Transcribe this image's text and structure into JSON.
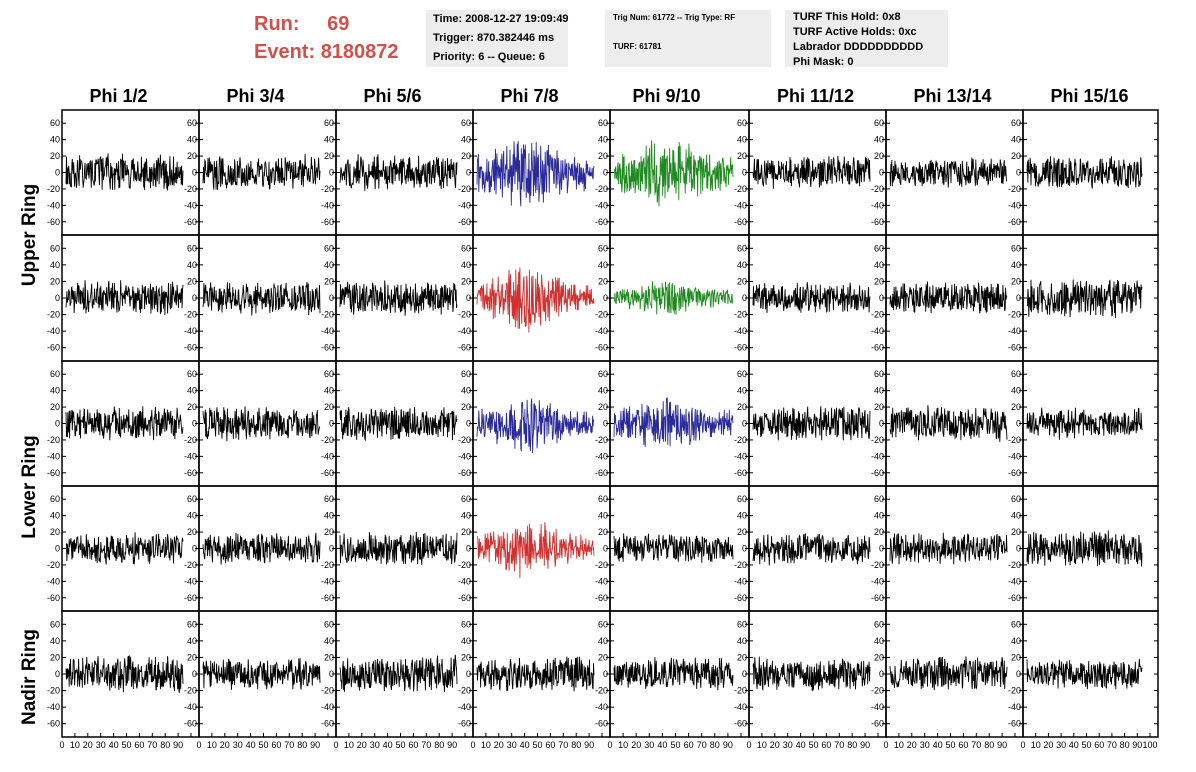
{
  "header": {
    "run_label": "Run:",
    "run_value": "69",
    "event_label": "Event:",
    "event_value": "8180872",
    "time": "Time: 2008-12-27 19:09:49",
    "trigger": "Trigger: 870.382446 ms",
    "priority": "Priority: 6 -- Queue: 6",
    "trig_num": "Trig Num: 61772 -- Trig Type: RF",
    "turf": "TURF: 61781",
    "turf_this_hold": "TURF This Hold: 0x8",
    "turf_active_holds": "TURF Active Holds: 0xc",
    "labrador": "Labrador DDDDDDDDDD",
    "phi_mask": "Phi Mask: 0"
  },
  "columns": [
    "Phi 1/2",
    "Phi 3/4",
    "Phi 5/6",
    "Phi 7/8",
    "Phi 9/10",
    "Phi 11/12",
    "Phi 13/14",
    "Phi 15/16"
  ],
  "rows": [
    "Upper Ring",
    "Lower Ring",
    "Nadir Ring"
  ],
  "chart_data": {
    "type": "line",
    "description_grid": "5 x 8 grid of waveform panels",
    "ylim": [
      -70,
      70
    ],
    "yticks": [
      -60,
      -40,
      -20,
      0,
      20,
      40,
      60
    ],
    "xlim": [
      0,
      100
    ],
    "xticks": [
      0,
      10,
      20,
      30,
      40,
      50,
      60,
      70,
      80,
      90,
      100
    ],
    "colors": {
      "default": "#000000",
      "blue": "#2a2a9a",
      "red": "#d03030",
      "green": "#1f8a1f"
    },
    "panel_colors": [
      [
        "default",
        "default",
        "default",
        "blue",
        "green",
        "default",
        "default",
        "default"
      ],
      [
        "default",
        "default",
        "default",
        "red",
        "green",
        "default",
        "default",
        "default"
      ],
      [
        "default",
        "default",
        "default",
        "blue",
        "blue",
        "default",
        "default",
        "default"
      ],
      [
        "default",
        "default",
        "default",
        "red",
        "default",
        "default",
        "default",
        "default"
      ],
      [
        "default",
        "default",
        "default",
        "default",
        "default",
        "default",
        "default",
        "default"
      ]
    ],
    "panel_amplitudes": [
      [
        18,
        18,
        18,
        30,
        30,
        16,
        15,
        17
      ],
      [
        17,
        17,
        17,
        28,
        14,
        16,
        16,
        19
      ],
      [
        17,
        18,
        17,
        24,
        24,
        17,
        18,
        16
      ],
      [
        16,
        16,
        17,
        24,
        15,
        16,
        16,
        18
      ],
      [
        18,
        16,
        18,
        17,
        16,
        17,
        17,
        15
      ]
    ]
  }
}
